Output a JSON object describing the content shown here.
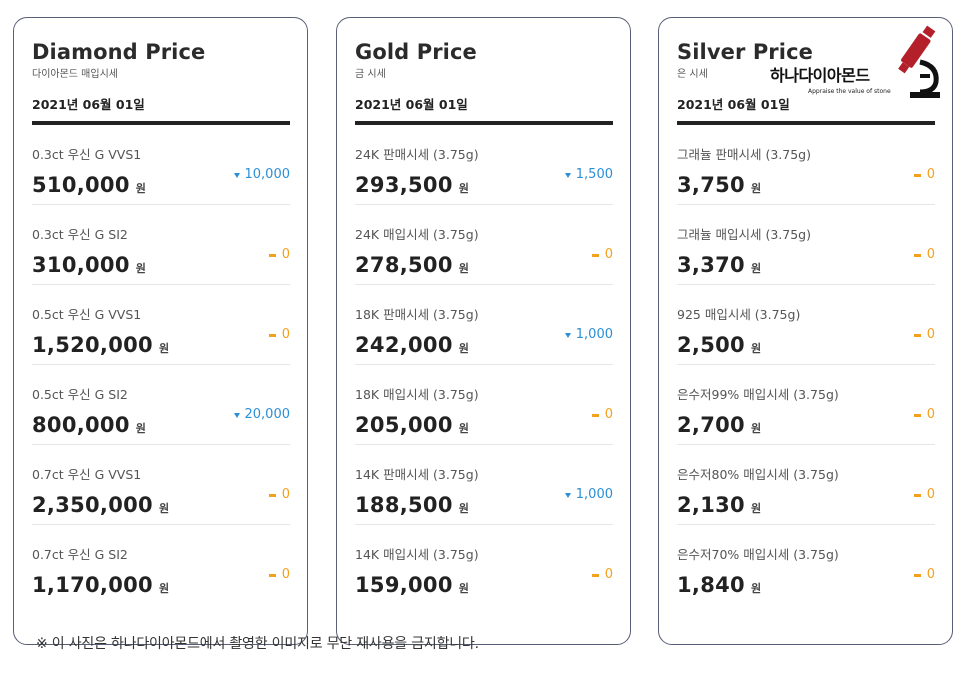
{
  "cards": {
    "diamond": {
      "title": "Diamond Price",
      "subtitle": "다이아몬드 매입시세",
      "date": "2021년 06월 01일",
      "rows": [
        {
          "label": "0.3ct 우신 G VVS1",
          "price": "510,000",
          "unit": "원",
          "change": "10,000",
          "dir": "down"
        },
        {
          "label": "0.3ct 우신 G SI2",
          "price": "310,000",
          "unit": "원",
          "change": "0",
          "dir": "same"
        },
        {
          "label": "0.5ct 우신 G VVS1",
          "price": "1,520,000",
          "unit": "원",
          "change": "0",
          "dir": "same"
        },
        {
          "label": "0.5ct 우신 G SI2",
          "price": "800,000",
          "unit": "원",
          "change": "20,000",
          "dir": "down"
        },
        {
          "label": "0.7ct 우신 G VVS1",
          "price": "2,350,000",
          "unit": "원",
          "change": "0",
          "dir": "same"
        },
        {
          "label": "0.7ct 우신 G SI2",
          "price": "1,170,000",
          "unit": "원",
          "change": "0",
          "dir": "same"
        }
      ]
    },
    "gold": {
      "title": "Gold Price",
      "subtitle": "금 시세",
      "date": "2021년 06월 01일",
      "rows": [
        {
          "label": "24K 판매시세 (3.75g)",
          "price": "293,500",
          "unit": "원",
          "change": "1,500",
          "dir": "down"
        },
        {
          "label": "24K 매입시세 (3.75g)",
          "price": "278,500",
          "unit": "원",
          "change": "0",
          "dir": "same"
        },
        {
          "label": "18K 판매시세 (3.75g)",
          "price": "242,000",
          "unit": "원",
          "change": "1,000",
          "dir": "down"
        },
        {
          "label": "18K 매입시세 (3.75g)",
          "price": "205,000",
          "unit": "원",
          "change": "0",
          "dir": "same"
        },
        {
          "label": "14K 판매시세 (3.75g)",
          "price": "188,500",
          "unit": "원",
          "change": "1,000",
          "dir": "down"
        },
        {
          "label": "14K 매입시세 (3.75g)",
          "price": "159,000",
          "unit": "원",
          "change": "0",
          "dir": "same"
        }
      ]
    },
    "silver": {
      "title": "Silver Price",
      "subtitle": "은 시세",
      "date": "2021년 06월 01일",
      "rows": [
        {
          "label": "그래뉼 판매시세 (3.75g)",
          "price": "3,750",
          "unit": "원",
          "change": "0",
          "dir": "same"
        },
        {
          "label": "그래뉼 매입시세 (3.75g)",
          "price": "3,370",
          "unit": "원",
          "change": "0",
          "dir": "same"
        },
        {
          "label": "925 매입시세 (3.75g)",
          "price": "2,500",
          "unit": "원",
          "change": "0",
          "dir": "same"
        },
        {
          "label": "은수저99% 매입시세 (3.75g)",
          "price": "2,700",
          "unit": "원",
          "change": "0",
          "dir": "same"
        },
        {
          "label": "은수저80% 매입시세 (3.75g)",
          "price": "2,130",
          "unit": "원",
          "change": "0",
          "dir": "same"
        },
        {
          "label": "은수저70% 매입시세 (3.75g)",
          "price": "1,840",
          "unit": "원",
          "change": "0",
          "dir": "same"
        }
      ]
    }
  },
  "logo": {
    "text": "하나다이아몬드",
    "tagline": "Appraise the value of stone",
    "icon": "microscope-icon"
  },
  "notice": "※ 이 사진은 하나다이아몬드에서 촬영한 이미지로 무단 재사용을 금지합니다.",
  "colors": {
    "down": "#2c8fd6",
    "same": "#f2a01f",
    "border": "#5a5f78",
    "logo_red": "#b3202a"
  }
}
